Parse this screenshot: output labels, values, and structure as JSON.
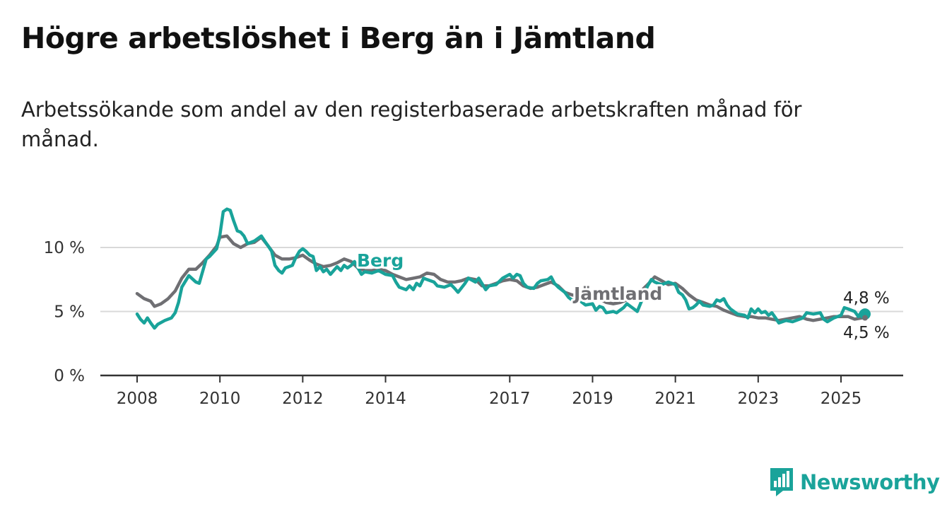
{
  "header": {
    "title": "Högre arbetslöshet i Berg än i Jämtland",
    "subtitle": "Arbetssökande som andel av den registerbaserade arbetskraften månad för månad."
  },
  "branding": {
    "name": "Newsworthy",
    "color": "#1aa39a",
    "icon": "bar-chart-bubble-icon"
  },
  "chart_data": {
    "type": "line",
    "ylim": [
      0,
      13
    ],
    "yticks": [
      {
        "value": 0,
        "label": "0 %"
      },
      {
        "value": 5,
        "label": "5 %"
      },
      {
        "value": 10,
        "label": "10 %"
      }
    ],
    "xlim": [
      2007.4,
      2026.4
    ],
    "xticks": [
      {
        "value": 2008,
        "label": "2008"
      },
      {
        "value": 2010,
        "label": "2010"
      },
      {
        "value": 2012,
        "label": "2012"
      },
      {
        "value": 2014,
        "label": "2014"
      },
      {
        "value": 2017,
        "label": "2017"
      },
      {
        "value": 2019,
        "label": "2019"
      },
      {
        "value": 2021,
        "label": "2021"
      },
      {
        "value": 2023,
        "label": "2023"
      },
      {
        "value": 2025,
        "label": "2025"
      }
    ],
    "grid": true,
    "series": [
      {
        "name": "Jämtland",
        "color": "#6f6f73",
        "end_label": "4,5 %",
        "points": [
          [
            2008.0,
            6.4
          ],
          [
            2008.17,
            6.0
          ],
          [
            2008.33,
            5.8
          ],
          [
            2008.42,
            5.4
          ],
          [
            2008.58,
            5.6
          ],
          [
            2008.75,
            6.0
          ],
          [
            2008.92,
            6.6
          ],
          [
            2009.08,
            7.6
          ],
          [
            2009.25,
            8.3
          ],
          [
            2009.42,
            8.3
          ],
          [
            2009.58,
            8.8
          ],
          [
            2009.75,
            9.4
          ],
          [
            2009.92,
            10.1
          ],
          [
            2010.0,
            10.8
          ],
          [
            2010.17,
            10.9
          ],
          [
            2010.33,
            10.3
          ],
          [
            2010.5,
            10.0
          ],
          [
            2010.67,
            10.3
          ],
          [
            2010.83,
            10.4
          ],
          [
            2011.0,
            10.8
          ],
          [
            2011.17,
            10.1
          ],
          [
            2011.33,
            9.4
          ],
          [
            2011.5,
            9.1
          ],
          [
            2011.67,
            9.1
          ],
          [
            2011.83,
            9.2
          ],
          [
            2012.0,
            9.4
          ],
          [
            2012.17,
            9.0
          ],
          [
            2012.33,
            8.7
          ],
          [
            2012.5,
            8.5
          ],
          [
            2012.67,
            8.6
          ],
          [
            2012.83,
            8.8
          ],
          [
            2013.0,
            9.1
          ],
          [
            2013.17,
            8.9
          ],
          [
            2013.33,
            8.4
          ],
          [
            2013.5,
            8.2
          ],
          [
            2013.67,
            8.2
          ],
          [
            2013.83,
            8.3
          ],
          [
            2014.0,
            8.2
          ],
          [
            2014.17,
            7.9
          ],
          [
            2014.33,
            7.7
          ],
          [
            2014.5,
            7.5
          ],
          [
            2014.67,
            7.6
          ],
          [
            2014.83,
            7.7
          ],
          [
            2015.0,
            8.0
          ],
          [
            2015.17,
            7.9
          ],
          [
            2015.33,
            7.5
          ],
          [
            2015.5,
            7.3
          ],
          [
            2015.67,
            7.3
          ],
          [
            2015.83,
            7.4
          ],
          [
            2016.0,
            7.6
          ],
          [
            2016.17,
            7.5
          ],
          [
            2016.33,
            7.0
          ],
          [
            2016.5,
            7.0
          ],
          [
            2016.67,
            7.2
          ],
          [
            2016.83,
            7.4
          ],
          [
            2017.0,
            7.5
          ],
          [
            2017.17,
            7.4
          ],
          [
            2017.33,
            7.0
          ],
          [
            2017.5,
            6.8
          ],
          [
            2017.67,
            6.9
          ],
          [
            2017.83,
            7.1
          ],
          [
            2018.0,
            7.3
          ],
          [
            2018.17,
            7.0
          ],
          [
            2018.33,
            6.5
          ],
          [
            2018.5,
            6.3
          ],
          [
            2018.67,
            6.2
          ],
          [
            2018.83,
            6.1
          ],
          [
            2019.0,
            6.1
          ],
          [
            2019.17,
            6.0
          ],
          [
            2019.33,
            5.7
          ],
          [
            2019.5,
            5.6
          ],
          [
            2019.67,
            5.7
          ],
          [
            2019.83,
            5.9
          ],
          [
            2020.0,
            6.3
          ],
          [
            2020.17,
            6.6
          ],
          [
            2020.33,
            7.1
          ],
          [
            2020.5,
            7.7
          ],
          [
            2020.67,
            7.4
          ],
          [
            2020.83,
            7.1
          ],
          [
            2021.0,
            7.2
          ],
          [
            2021.17,
            6.8
          ],
          [
            2021.33,
            6.3
          ],
          [
            2021.5,
            5.9
          ],
          [
            2021.67,
            5.7
          ],
          [
            2021.83,
            5.5
          ],
          [
            2022.0,
            5.4
          ],
          [
            2022.17,
            5.1
          ],
          [
            2022.33,
            4.9
          ],
          [
            2022.5,
            4.7
          ],
          [
            2022.67,
            4.6
          ],
          [
            2022.83,
            4.6
          ],
          [
            2023.0,
            4.5
          ],
          [
            2023.17,
            4.5
          ],
          [
            2023.33,
            4.4
          ],
          [
            2023.5,
            4.3
          ],
          [
            2023.67,
            4.4
          ],
          [
            2023.83,
            4.5
          ],
          [
            2024.0,
            4.6
          ],
          [
            2024.17,
            4.4
          ],
          [
            2024.33,
            4.3
          ],
          [
            2024.5,
            4.4
          ],
          [
            2024.67,
            4.5
          ],
          [
            2024.83,
            4.6
          ],
          [
            2025.0,
            4.6
          ],
          [
            2025.17,
            4.6
          ],
          [
            2025.33,
            4.4
          ],
          [
            2025.5,
            4.5
          ],
          [
            2025.58,
            4.5
          ]
        ]
      },
      {
        "name": "Berg",
        "color": "#19a39a",
        "end_label": "4,8 %",
        "points": [
          [
            2008.0,
            4.8
          ],
          [
            2008.08,
            4.4
          ],
          [
            2008.17,
            4.1
          ],
          [
            2008.25,
            4.5
          ],
          [
            2008.33,
            4.1
          ],
          [
            2008.42,
            3.7
          ],
          [
            2008.5,
            4.0
          ],
          [
            2008.67,
            4.3
          ],
          [
            2008.83,
            4.5
          ],
          [
            2008.92,
            4.9
          ],
          [
            2009.0,
            5.7
          ],
          [
            2009.08,
            6.9
          ],
          [
            2009.25,
            7.8
          ],
          [
            2009.42,
            7.3
          ],
          [
            2009.5,
            7.2
          ],
          [
            2009.58,
            8.1
          ],
          [
            2009.67,
            9.1
          ],
          [
            2009.75,
            9.3
          ],
          [
            2009.92,
            9.9
          ],
          [
            2010.0,
            11.0
          ],
          [
            2010.08,
            12.8
          ],
          [
            2010.17,
            13.0
          ],
          [
            2010.25,
            12.9
          ],
          [
            2010.33,
            12.1
          ],
          [
            2010.42,
            11.3
          ],
          [
            2010.5,
            11.2
          ],
          [
            2010.58,
            10.9
          ],
          [
            2010.67,
            10.3
          ],
          [
            2010.83,
            10.5
          ],
          [
            2011.0,
            10.9
          ],
          [
            2011.08,
            10.5
          ],
          [
            2011.17,
            10.1
          ],
          [
            2011.25,
            9.7
          ],
          [
            2011.33,
            8.6
          ],
          [
            2011.42,
            8.2
          ],
          [
            2011.5,
            8.0
          ],
          [
            2011.58,
            8.4
          ],
          [
            2011.75,
            8.6
          ],
          [
            2011.83,
            9.2
          ],
          [
            2011.92,
            9.7
          ],
          [
            2012.0,
            9.9
          ],
          [
            2012.08,
            9.7
          ],
          [
            2012.17,
            9.4
          ],
          [
            2012.25,
            9.3
          ],
          [
            2012.33,
            8.2
          ],
          [
            2012.42,
            8.5
          ],
          [
            2012.5,
            8.1
          ],
          [
            2012.58,
            8.3
          ],
          [
            2012.67,
            7.9
          ],
          [
            2012.83,
            8.5
          ],
          [
            2012.92,
            8.2
          ],
          [
            2013.0,
            8.6
          ],
          [
            2013.08,
            8.4
          ],
          [
            2013.17,
            8.6
          ],
          [
            2013.25,
            8.9
          ],
          [
            2013.42,
            7.9
          ],
          [
            2013.5,
            8.1
          ],
          [
            2013.67,
            8.0
          ],
          [
            2013.83,
            8.2
          ],
          [
            2014.0,
            7.9
          ],
          [
            2014.17,
            7.8
          ],
          [
            2014.25,
            7.3
          ],
          [
            2014.33,
            6.9
          ],
          [
            2014.5,
            6.7
          ],
          [
            2014.58,
            7.0
          ],
          [
            2014.67,
            6.7
          ],
          [
            2014.75,
            7.2
          ],
          [
            2014.83,
            7.0
          ],
          [
            2014.92,
            7.6
          ],
          [
            2015.0,
            7.5
          ],
          [
            2015.17,
            7.3
          ],
          [
            2015.25,
            7.0
          ],
          [
            2015.42,
            6.9
          ],
          [
            2015.58,
            7.1
          ],
          [
            2015.67,
            6.8
          ],
          [
            2015.75,
            6.5
          ],
          [
            2015.92,
            7.2
          ],
          [
            2016.0,
            7.6
          ],
          [
            2016.17,
            7.3
          ],
          [
            2016.25,
            7.6
          ],
          [
            2016.42,
            6.7
          ],
          [
            2016.5,
            7.0
          ],
          [
            2016.67,
            7.1
          ],
          [
            2016.83,
            7.6
          ],
          [
            2017.0,
            7.9
          ],
          [
            2017.08,
            7.6
          ],
          [
            2017.17,
            7.9
          ],
          [
            2017.25,
            7.8
          ],
          [
            2017.33,
            7.2
          ],
          [
            2017.42,
            6.9
          ],
          [
            2017.58,
            6.8
          ],
          [
            2017.67,
            7.2
          ],
          [
            2017.75,
            7.4
          ],
          [
            2017.92,
            7.5
          ],
          [
            2018.0,
            7.7
          ],
          [
            2018.08,
            7.2
          ],
          [
            2018.17,
            6.9
          ],
          [
            2018.33,
            6.5
          ],
          [
            2018.42,
            6.1
          ],
          [
            2018.5,
            5.9
          ],
          [
            2018.67,
            5.9
          ],
          [
            2018.83,
            5.5
          ],
          [
            2019.0,
            5.6
          ],
          [
            2019.08,
            5.1
          ],
          [
            2019.17,
            5.4
          ],
          [
            2019.25,
            5.3
          ],
          [
            2019.33,
            4.9
          ],
          [
            2019.5,
            5.0
          ],
          [
            2019.58,
            4.9
          ],
          [
            2019.75,
            5.3
          ],
          [
            2019.83,
            5.6
          ],
          [
            2020.0,
            5.2
          ],
          [
            2020.08,
            5.0
          ],
          [
            2020.17,
            5.7
          ],
          [
            2020.25,
            6.4
          ],
          [
            2020.33,
            7.0
          ],
          [
            2020.42,
            7.5
          ],
          [
            2020.5,
            7.3
          ],
          [
            2020.58,
            7.2
          ],
          [
            2020.67,
            7.1
          ],
          [
            2020.83,
            7.3
          ],
          [
            2021.0,
            7.1
          ],
          [
            2021.08,
            6.5
          ],
          [
            2021.17,
            6.3
          ],
          [
            2021.25,
            5.9
          ],
          [
            2021.33,
            5.2
          ],
          [
            2021.42,
            5.3
          ],
          [
            2021.5,
            5.5
          ],
          [
            2021.58,
            5.8
          ],
          [
            2021.67,
            5.5
          ],
          [
            2021.83,
            5.4
          ],
          [
            2021.92,
            5.5
          ],
          [
            2022.0,
            5.9
          ],
          [
            2022.08,
            5.8
          ],
          [
            2022.17,
            6.0
          ],
          [
            2022.25,
            5.5
          ],
          [
            2022.33,
            5.2
          ],
          [
            2022.5,
            4.8
          ],
          [
            2022.67,
            4.7
          ],
          [
            2022.75,
            4.5
          ],
          [
            2022.83,
            5.2
          ],
          [
            2022.92,
            4.9
          ],
          [
            2023.0,
            5.2
          ],
          [
            2023.08,
            4.9
          ],
          [
            2023.17,
            5.0
          ],
          [
            2023.25,
            4.7
          ],
          [
            2023.33,
            4.9
          ],
          [
            2023.42,
            4.5
          ],
          [
            2023.5,
            4.1
          ],
          [
            2023.67,
            4.3
          ],
          [
            2023.83,
            4.2
          ],
          [
            2024.0,
            4.4
          ],
          [
            2024.08,
            4.5
          ],
          [
            2024.17,
            4.9
          ],
          [
            2024.33,
            4.8
          ],
          [
            2024.5,
            4.9
          ],
          [
            2024.58,
            4.4
          ],
          [
            2024.67,
            4.2
          ],
          [
            2024.83,
            4.5
          ],
          [
            2025.0,
            4.7
          ],
          [
            2025.08,
            5.3
          ],
          [
            2025.17,
            5.2
          ],
          [
            2025.33,
            5.0
          ],
          [
            2025.42,
            4.6
          ],
          [
            2025.5,
            5.0
          ],
          [
            2025.58,
            4.8
          ]
        ]
      }
    ]
  }
}
